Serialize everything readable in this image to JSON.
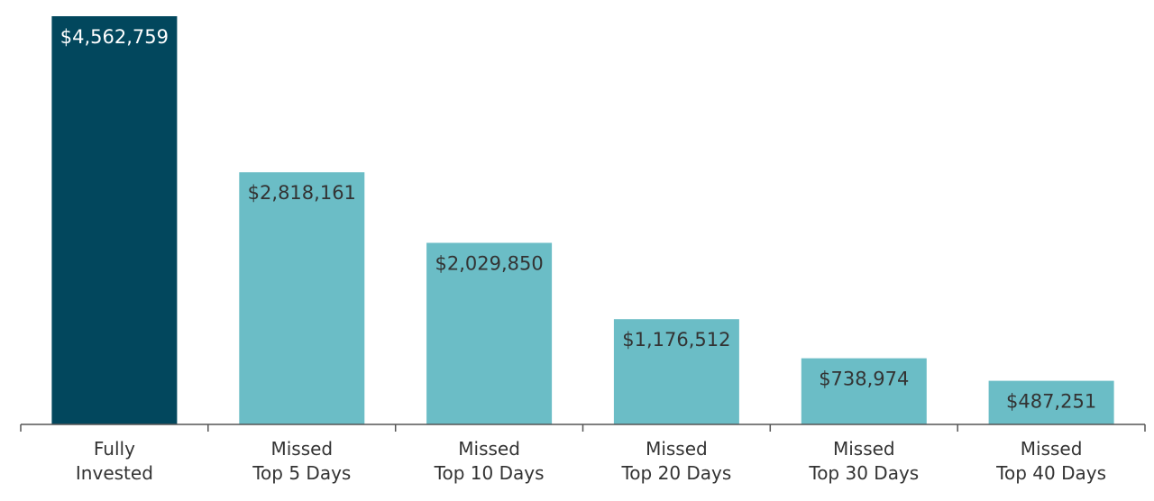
{
  "chart_data": {
    "type": "bar",
    "title": "",
    "xlabel": "",
    "ylabel": "",
    "ylim": [
      0,
      4562759
    ],
    "grid": false,
    "legend": "none",
    "categories": [
      [
        "Fully",
        "Invested"
      ],
      [
        "Missed",
        "Top 5 Days"
      ],
      [
        "Missed",
        "Top 10 Days"
      ],
      [
        "Missed",
        "Top 20 Days"
      ],
      [
        "Missed",
        "Top 30 Days"
      ],
      [
        "Missed",
        "Top 40 Days"
      ]
    ],
    "values": [
      4562759,
      2818161,
      2029850,
      1176512,
      738974,
      487251
    ],
    "value_labels": [
      "$4,562,759",
      "$2,818,161",
      "$2,029,850",
      "$1,176,512",
      "$738,974",
      "$487,251"
    ],
    "colors": {
      "highlight_bar": "#02475d",
      "bar": "#6bbdc6",
      "highlight_label": "#ffffff",
      "label": "#333333",
      "axis": "#555555"
    }
  }
}
